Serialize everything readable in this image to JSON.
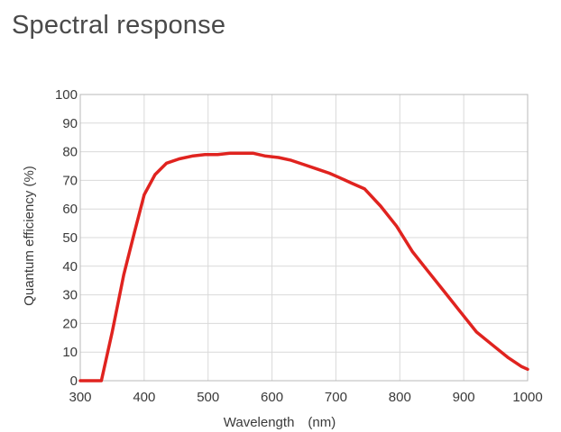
{
  "page": {
    "title": "Spectral response"
  },
  "chart_data": {
    "type": "line",
    "title": "Spectral response",
    "xlabel": "Wavelength　(nm)",
    "ylabel": "Quantum efficiency (%)",
    "xlim": [
      300,
      1000
    ],
    "ylim": [
      0,
      100
    ],
    "xticks": [
      300,
      400,
      500,
      600,
      700,
      800,
      900,
      1000
    ],
    "yticks": [
      0,
      10,
      20,
      30,
      40,
      50,
      60,
      70,
      80,
      90,
      100
    ],
    "grid": true,
    "series": [
      {
        "color": "#e0231f",
        "x": [
          300,
          333,
          350,
          368,
          385,
          400,
          417,
          435,
          455,
          475,
          495,
          515,
          535,
          550,
          570,
          590,
          610,
          630,
          650,
          670,
          690,
          705,
          725,
          745,
          770,
          795,
          820,
          845,
          870,
          895,
          920,
          945,
          970,
          990,
          1000
        ],
        "y": [
          0,
          0,
          17,
          37,
          52,
          65,
          72,
          76,
          77.5,
          78.5,
          79,
          79,
          79.5,
          79.5,
          79.5,
          78.5,
          78,
          77,
          75.5,
          74,
          72.5,
          71,
          69,
          67,
          61,
          54,
          45,
          38,
          31,
          24,
          17,
          12.5,
          8,
          5,
          4
        ]
      }
    ]
  }
}
